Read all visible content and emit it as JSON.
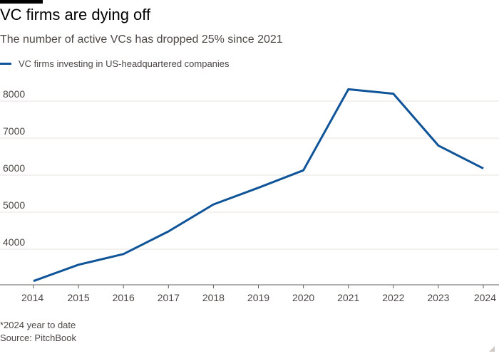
{
  "title": "VC firms are dying off",
  "subtitle": "The number of active VCs has dropped 25% since 2021",
  "footnote": "*2024 year to date",
  "source": "Source: PitchBook",
  "colors": {
    "series": "#0f5499",
    "grid": "#e6e3df",
    "axis": "#66605c"
  },
  "chart_data": {
    "type": "line",
    "title": "VC firms are dying off",
    "subtitle": "The number of active VCs has dropped 25% since 2021",
    "x": [
      "2014",
      "2015",
      "2016",
      "2017",
      "2018",
      "2019",
      "2020",
      "2021",
      "2022",
      "2023",
      "2024"
    ],
    "x_tick_labels": [
      "2014",
      "2015",
      "2016",
      "2017",
      "2018",
      "2019",
      "2020",
      "2021",
      "2022",
      "2023",
      "2024"
    ],
    "y_ticks": [
      4000,
      5000,
      6000,
      7000,
      8000
    ],
    "y_tick_labels": [
      "4000",
      "5000",
      "6000",
      "7000",
      "8000"
    ],
    "ylim": [
      3100,
      8500
    ],
    "grid": true,
    "legend_position": "top-left",
    "series": [
      {
        "name": "VC firms investing in US-headquartered companies",
        "values": [
          3140,
          3580,
          3870,
          4480,
          5210,
          5660,
          6130,
          8320,
          8200,
          6800,
          6180
        ]
      }
    ]
  }
}
